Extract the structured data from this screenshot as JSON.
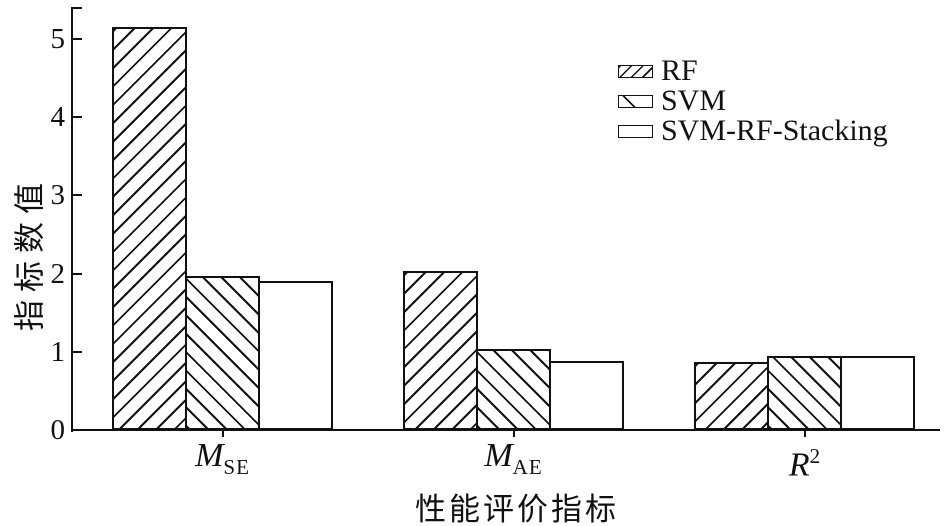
{
  "figure": {
    "background": "#ffffff",
    "ink_color": "#111111"
  },
  "chart_data": {
    "type": "bar",
    "title": "",
    "xlabel": "性能评价指标",
    "ylabel": "指标数值",
    "ylim": [
      0,
      5.4
    ],
    "yticks": [
      "0",
      "1",
      "2",
      "3",
      "4",
      "5"
    ],
    "grid": false,
    "legend_position": "upper-right-inside",
    "bar_style": "white fill with black hatch outlines",
    "categories": [
      {
        "base": "M",
        "sub": "SE",
        "sup": ""
      },
      {
        "base": "M",
        "sub": "AE",
        "sup": ""
      },
      {
        "base": "R",
        "sub": "",
        "sup": "2"
      }
    ],
    "series": [
      {
        "name": "RF",
        "hatch": "forward-diagonal",
        "values": [
          5.15,
          2.03,
          0.87
        ]
      },
      {
        "name": "SVM",
        "hatch": "backward-diagonal",
        "values": [
          1.97,
          1.03,
          0.95
        ]
      },
      {
        "name": "SVM-RF-Stacking",
        "hatch": "none",
        "values": [
          1.9,
          0.88,
          0.95
        ]
      }
    ]
  }
}
